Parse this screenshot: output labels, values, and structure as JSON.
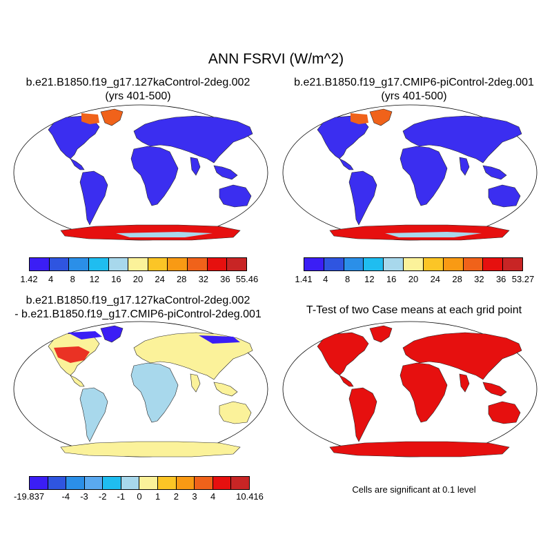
{
  "title": "ANN FSRVI (W/m^2)",
  "panels": [
    {
      "title_line1": "b.e21.B1850.f19_g17.127kaControl-2deg.002",
      "title_line2": "(yrs 401-500)"
    },
    {
      "title_line1": "b.e21.B1850.f19_g17.CMIP6-piControl-2deg.001",
      "title_line2": "(yrs 401-500)"
    },
    {
      "title_line1": "b.e21.B1850.f19_g17.127kaControl-2deg.002",
      "title_line2": "- b.e21.B1850.f19_g17.CMIP6-piControl-2deg.001"
    },
    {
      "title_line1": "T-Test of two Case means at each grid point"
    }
  ],
  "colorbars": [
    {
      "colors": [
        "#3b1ef5",
        "#2f55e0",
        "#2b8fe8",
        "#1fbdf0",
        "#a8d8ec",
        "#fbf29a",
        "#fbc526",
        "#f99a14",
        "#f0621a",
        "#e6100f",
        "#c82525"
      ],
      "labels": [
        "1.42",
        "4",
        "8",
        "12",
        "16",
        "20",
        "24",
        "28",
        "32",
        "36",
        "55.46"
      ]
    },
    {
      "colors": [
        "#3b1ef5",
        "#2f55e0",
        "#2b8fe8",
        "#1fbdf0",
        "#a8d8ec",
        "#fbf29a",
        "#fbc526",
        "#f99a14",
        "#f0621a",
        "#e6100f",
        "#c82525"
      ],
      "labels": [
        "1.41",
        "4",
        "8",
        "12",
        "16",
        "20",
        "24",
        "28",
        "32",
        "36",
        "53.27"
      ]
    },
    {
      "colors": [
        "#3b1ef5",
        "#2f55e0",
        "#2b8fe8",
        "#5aa9f0",
        "#1fbdf0",
        "#a8d8ec",
        "#fbf29a",
        "#fbc526",
        "#f99a14",
        "#f0621a",
        "#e6100f",
        "#c82525"
      ],
      "labels": [
        "-19.837",
        "-4",
        "-3",
        "-2",
        "-1",
        "0",
        "1",
        "2",
        "3",
        "4",
        "10.416"
      ]
    }
  ],
  "significance_note": "Cells are significant at 0.1 level",
  "map_colors": {
    "case1": {
      "land": "#3b2ef0",
      "high_lat_north": "#f0621a",
      "antarctica": "#e6100f",
      "antarctic_interior": "#a8d8ec"
    },
    "case2": {
      "land": "#3b2ef0",
      "high_lat_north": "#f0621a",
      "antarctica": "#e6100f",
      "antarctic_interior": "#a8d8ec"
    },
    "diff": {
      "land": "#fbf29a",
      "tropics": "#a8d8ec",
      "north_america": "#e6100f",
      "north": "#3b1ef5"
    },
    "ttest": {
      "land": "#e6100f"
    }
  }
}
